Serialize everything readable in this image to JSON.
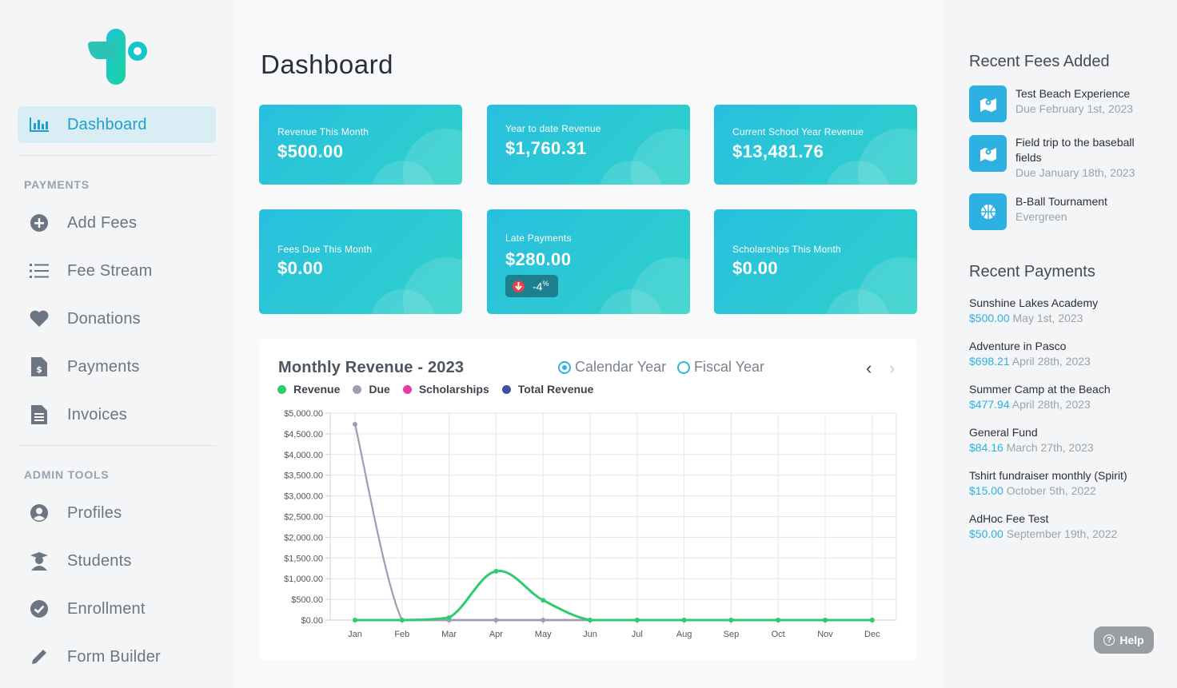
{
  "sidebar": {
    "items_main": [
      {
        "label": "Dashboard",
        "icon": "bar-chart-icon",
        "active": true
      }
    ],
    "payments_label": "PAYMENTS",
    "payments": [
      {
        "label": "Add Fees",
        "icon": "plus-circle-icon"
      },
      {
        "label": "Fee Stream",
        "icon": "list-icon"
      },
      {
        "label": "Donations",
        "icon": "heart-icon"
      },
      {
        "label": "Payments",
        "icon": "dollar-file-icon"
      },
      {
        "label": "Invoices",
        "icon": "invoice-file-icon"
      }
    ],
    "admin_label": "ADMIN TOOLS",
    "admin": [
      {
        "label": "Profiles",
        "icon": "user-circle-icon"
      },
      {
        "label": "Students",
        "icon": "graduate-icon"
      },
      {
        "label": "Enrollment",
        "icon": "check-circle-icon"
      },
      {
        "label": "Form Builder",
        "icon": "pencil-icon"
      }
    ]
  },
  "main": {
    "title": "Dashboard",
    "cards": [
      {
        "label": "Revenue This Month",
        "value": "$500.00"
      },
      {
        "label": "Year to date Revenue",
        "value": "$1,760.31"
      },
      {
        "label": "Current School Year Revenue",
        "value": "$13,481.76"
      },
      {
        "label": "Fees Due This Month",
        "value": "$0.00"
      },
      {
        "label": "Late Payments",
        "value": "$280.00",
        "badge": "-4",
        "badge_unit": "%"
      },
      {
        "label": "Scholarships This Month",
        "value": "$0.00"
      }
    ],
    "chart": {
      "title": "Monthly Revenue - 2023",
      "radio_calendar": "Calendar Year",
      "radio_fiscal": "Fiscal Year",
      "prev_label": "‹",
      "next_label": "›"
    }
  },
  "chart_data": {
    "type": "line",
    "categories": [
      "Jan",
      "Feb",
      "Mar",
      "Apr",
      "May",
      "Jun",
      "Jul",
      "Aug",
      "Sep",
      "Oct",
      "Nov",
      "Dec"
    ],
    "ylim": [
      0,
      5000
    ],
    "yticks": [
      "$5,000.00",
      "$4,500.00",
      "$4,000.00",
      "$3,500.00",
      "$3,000.00",
      "$2,500.00",
      "$2,000.00",
      "$1,500.00",
      "$1,000.00",
      "$500.00",
      "$0.00"
    ],
    "grid": true,
    "legend_position": "top-left",
    "series": [
      {
        "name": "Revenue",
        "color": "#2ecc71",
        "values": [
          0,
          0,
          60,
          1180,
          480,
          0,
          0,
          0,
          0,
          0,
          0,
          0
        ]
      },
      {
        "name": "Due",
        "color": "#9aa0b4",
        "values": [
          4730,
          0,
          0,
          0,
          0,
          0,
          0,
          0,
          0,
          0,
          0,
          0
        ]
      },
      {
        "name": "Scholarships",
        "color": "#e83aa4",
        "values": [
          0,
          0,
          0,
          0,
          0,
          0,
          0,
          0,
          0,
          0,
          0,
          0
        ]
      },
      {
        "name": "Total Revenue",
        "color": "#3b4fa3",
        "values": [
          0,
          0,
          0,
          0,
          0,
          0,
          0,
          0,
          0,
          0,
          0,
          0
        ]
      }
    ]
  },
  "right": {
    "fees_title": "Recent Fees Added",
    "fees": [
      {
        "name": "Test Beach Experience",
        "sub": "Due February 1st, 2023",
        "icon": "map-pin-icon"
      },
      {
        "name": "Field trip to the baseball fields",
        "sub": "Due January 18th, 2023",
        "icon": "map-pin-icon"
      },
      {
        "name": "B-Ball Tournament",
        "sub": "Evergreen",
        "icon": "basketball-icon"
      }
    ],
    "payments_title": "Recent Payments",
    "payments": [
      {
        "name": "Sunshine Lakes Academy",
        "amount": "$500.00",
        "date": "May 1st, 2023"
      },
      {
        "name": "Adventure in Pasco",
        "amount": "$698.21",
        "date": "April 28th, 2023"
      },
      {
        "name": "Summer Camp at the Beach",
        "amount": "$477.94",
        "date": "April 28th, 2023"
      },
      {
        "name": "General Fund",
        "amount": "$84.16",
        "date": "March 27th, 2023"
      },
      {
        "name": "Tshirt fundraiser monthly (Spirit)",
        "amount": "$15.00",
        "date": "October 5th, 2022"
      },
      {
        "name": "AdHoc Fee Test",
        "amount": "$50.00",
        "date": "September 19th, 2022"
      }
    ]
  },
  "help": {
    "label": "Help"
  },
  "colors": {
    "accent": "#1f9fcf",
    "card_start": "#29bfe0",
    "card_end": "#2ed1c9"
  }
}
